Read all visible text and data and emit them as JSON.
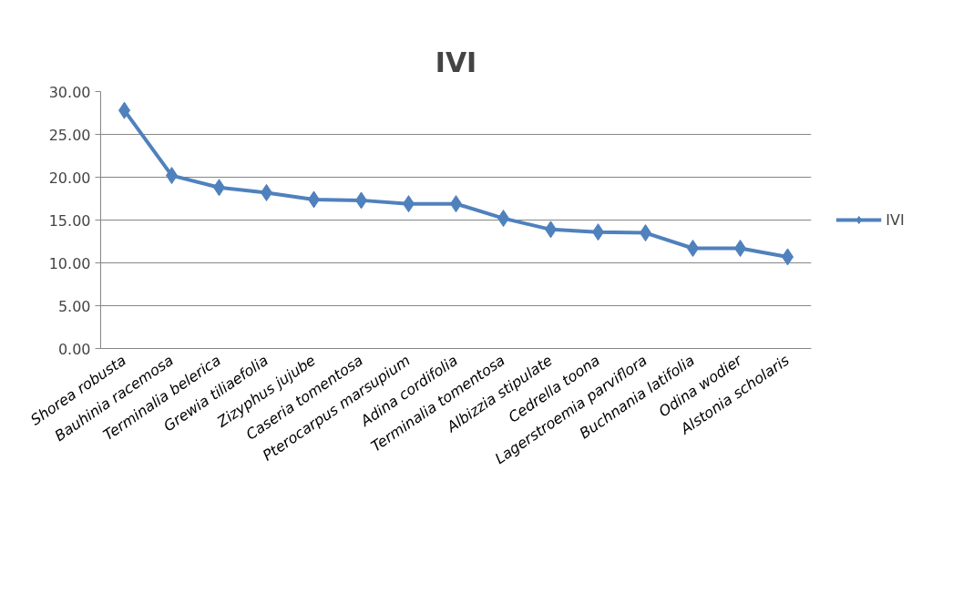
{
  "chart_data": {
    "type": "line",
    "title": "IVI",
    "categories": [
      "Shorea robusta",
      "Bauhinia racemosa",
      "Terminalia belerica",
      "Grewia tiliaefolia",
      "Zizyphus jujube",
      "Caseria tomentosa",
      "Pterocarpus marsupium",
      "Adina cordifolia",
      "Terminalia tomentosa",
      "Albizzia stipulate",
      "Cedrella toona",
      "Lagerstroemia parviflora",
      "Buchnania latifolia",
      "Odina wodier",
      "Alstonia scholaris"
    ],
    "series": [
      {
        "name": "IVI",
        "color": "#4f81bd",
        "values": [
          27.8,
          20.2,
          18.8,
          18.2,
          17.4,
          17.3,
          16.9,
          16.9,
          15.2,
          13.9,
          13.6,
          13.5,
          11.7,
          11.7,
          10.7
        ]
      }
    ],
    "ylim": [
      0,
      30
    ],
    "yticks": [
      {
        "value": 0,
        "label": "0.00"
      },
      {
        "value": 5,
        "label": "5.00"
      },
      {
        "value": 10,
        "label": "10.00"
      },
      {
        "value": 15,
        "label": "15.00"
      },
      {
        "value": 20,
        "label": "20.00"
      },
      {
        "value": 25,
        "label": "25.00"
      },
      {
        "value": 30,
        "label": "30.00"
      }
    ],
    "grid": "y",
    "legend": "right",
    "marker": "diamond",
    "line_style": "solid"
  }
}
